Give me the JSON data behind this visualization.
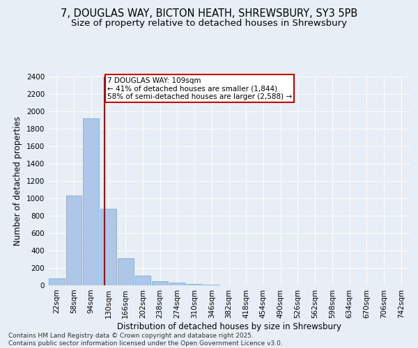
{
  "title_line1": "7, DOUGLAS WAY, BICTON HEATH, SHREWSBURY, SY3 5PB",
  "title_line2": "Size of property relative to detached houses in Shrewsbury",
  "xlabel": "Distribution of detached houses by size in Shrewsbury",
  "ylabel": "Number of detached properties",
  "categories": [
    "22sqm",
    "58sqm",
    "94sqm",
    "130sqm",
    "166sqm",
    "202sqm",
    "238sqm",
    "274sqm",
    "310sqm",
    "346sqm",
    "382sqm",
    "418sqm",
    "454sqm",
    "490sqm",
    "526sqm",
    "562sqm",
    "598sqm",
    "634sqm",
    "670sqm",
    "706sqm",
    "742sqm"
  ],
  "values": [
    80,
    1030,
    1920,
    880,
    315,
    115,
    48,
    35,
    20,
    5,
    0,
    0,
    0,
    0,
    0,
    0,
    0,
    0,
    0,
    0,
    0
  ],
  "bar_color": "#aec6e8",
  "bar_edge_color": "#6aaad4",
  "vline_x": 2.78,
  "vline_color": "#cc0000",
  "annotation_text": "7 DOUGLAS WAY: 109sqm\n← 41% of detached houses are smaller (1,844)\n58% of semi-detached houses are larger (2,588) →",
  "annotation_box_color": "#ffffff",
  "annotation_box_edge": "#cc0000",
  "ylim": [
    0,
    2400
  ],
  "yticks": [
    0,
    200,
    400,
    600,
    800,
    1000,
    1200,
    1400,
    1600,
    1800,
    2000,
    2200,
    2400
  ],
  "background_color": "#e8eef5",
  "footer_text": "Contains HM Land Registry data © Crown copyright and database right 2025.\nContains public sector information licensed under the Open Government Licence v3.0.",
  "title_fontsize": 10.5,
  "subtitle_fontsize": 9.5,
  "axis_label_fontsize": 8.5,
  "tick_fontsize": 7.5,
  "annot_fontsize": 7.5,
  "footer_fontsize": 6.5
}
